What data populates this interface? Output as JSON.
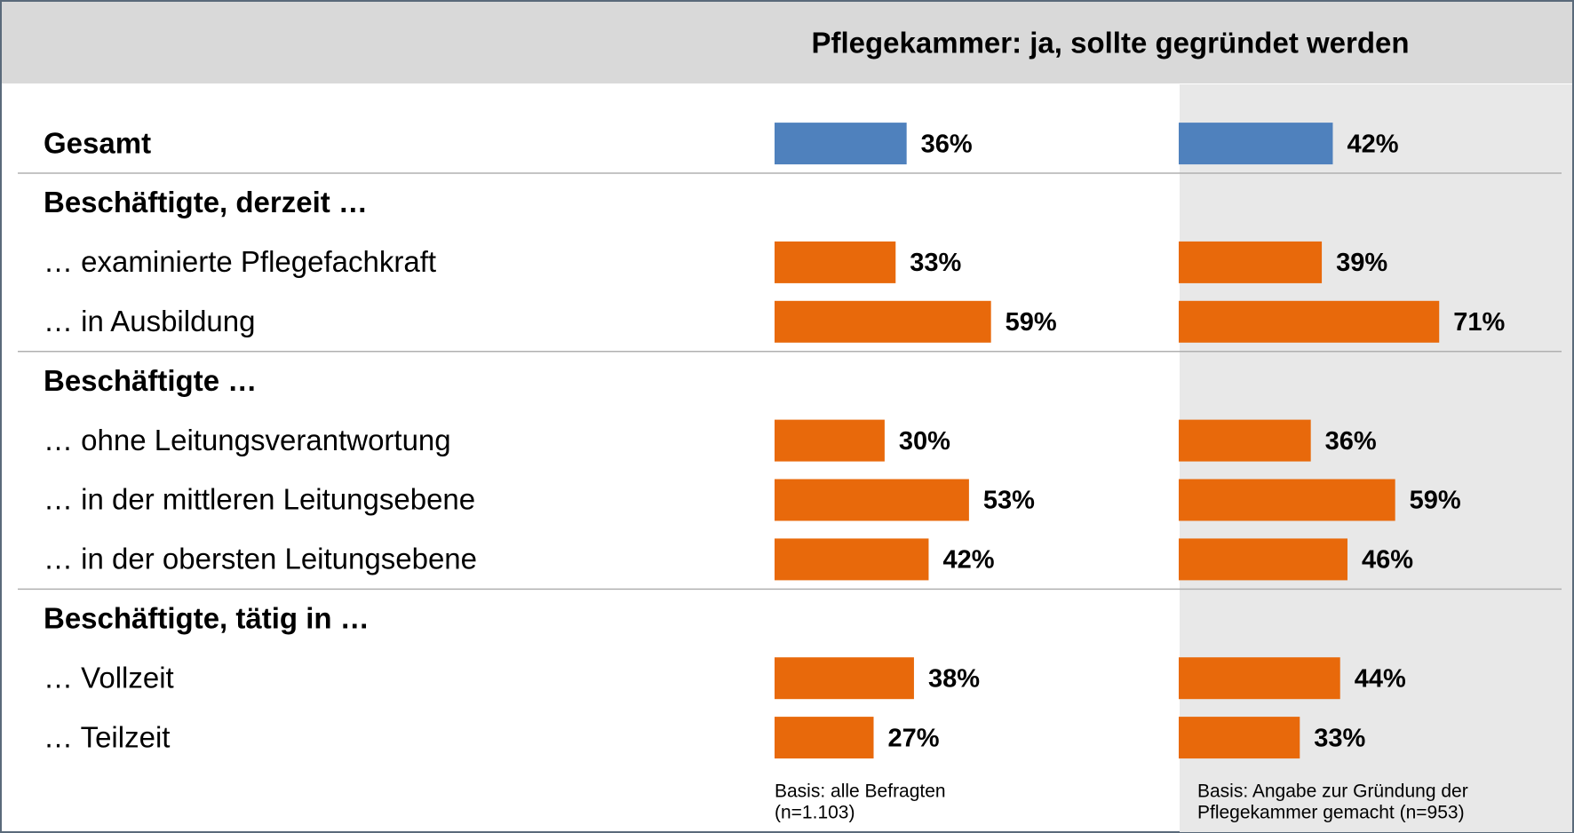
{
  "chart_data": {
    "type": "bar",
    "orientation": "horizontal",
    "title": "Pflegekammer: ja, sollte gegründet werden",
    "categories": [
      "Gesamt",
      "Beschäftigte, derzeit …",
      "… examinierte Pflegefachkraft",
      "… in Ausbildung",
      "Beschäftigte …",
      "… ohne Leitungsverantwortung",
      "… in der mittleren Leitungsebene",
      "… in der obersten Leitungsebene",
      "Beschäftigte, tätig in  …",
      "… Vollzeit",
      "… Teilzeit"
    ],
    "bold": [
      true,
      true,
      false,
      false,
      true,
      false,
      false,
      false,
      true,
      false,
      false
    ],
    "series": [
      {
        "values": [
          36,
          null,
          33,
          59,
          null,
          30,
          53,
          42,
          null,
          38,
          27
        ],
        "value_labels": [
          "36%",
          null,
          "33%",
          "59%",
          null,
          "30%",
          "53%",
          "42%",
          null,
          "38%",
          "27%"
        ],
        "colors": [
          "#4f81bd",
          null,
          "#e8690b",
          "#e8690b",
          null,
          "#e8690b",
          "#e8690b",
          "#e8690b",
          null,
          "#e8690b",
          "#e8690b"
        ],
        "note": [
          "Basis: alle Befragten",
          "(n=1.103)"
        ]
      },
      {
        "values": [
          42,
          null,
          39,
          71,
          null,
          36,
          59,
          46,
          null,
          44,
          33
        ],
        "value_labels": [
          "42%",
          null,
          "39%",
          "71%",
          null,
          "36%",
          "59%",
          "46%",
          null,
          "44%",
          "33%"
        ],
        "colors": [
          "#4f81bd",
          null,
          "#e8690b",
          "#e8690b",
          null,
          "#e8690b",
          "#e8690b",
          "#e8690b",
          null,
          "#e8690b",
          "#e8690b"
        ],
        "note": [
          "Basis: Angabe zur Gründung der",
          "Pflegekammer gemacht  (n=953)"
        ]
      }
    ]
  }
}
